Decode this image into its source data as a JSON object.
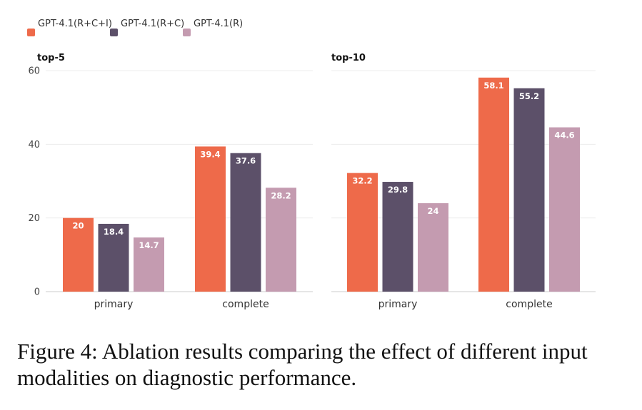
{
  "chart_data": {
    "type": "bar",
    "legend_position": "top-left",
    "grid": true,
    "series": [
      {
        "name": "GPT-4.1(R+C+I)",
        "color": "#EE6A4A"
      },
      {
        "name": "GPT-4.1(R+C)",
        "color": "#5C5069"
      },
      {
        "name": "GPT-4.1(R)",
        "color": "#C49BB0"
      }
    ],
    "yticks": [
      0,
      20,
      40,
      60
    ],
    "ylim": [
      0,
      60
    ],
    "panels": [
      {
        "title": "top-5",
        "categories": [
          "primary",
          "complete"
        ],
        "values": [
          [
            20,
            39.4
          ],
          [
            18.4,
            37.6
          ],
          [
            14.7,
            28.2
          ]
        ],
        "labels": [
          [
            "20",
            "39.4"
          ],
          [
            "18.4",
            "37.6"
          ],
          [
            "14.7",
            "28.2"
          ]
        ]
      },
      {
        "title": "top-10",
        "categories": [
          "primary",
          "complete"
        ],
        "values": [
          [
            32.2,
            58.1
          ],
          [
            29.8,
            55.2
          ],
          [
            24,
            44.6
          ]
        ],
        "labels": [
          [
            "32.2",
            "58.1"
          ],
          [
            "29.8",
            "55.2"
          ],
          [
            "24",
            "44.6"
          ]
        ]
      }
    ]
  },
  "caption": "Figure 4: Ablation results comparing the effect of different input modalities on diagnostic performance."
}
